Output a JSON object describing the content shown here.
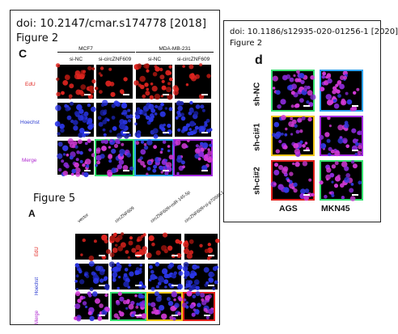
{
  "left_panel": {
    "doi": "doi: 10.2147/cmar.s174778 [2018]",
    "figure2_title": "Figure 2",
    "panel_c": {
      "letter": "C",
      "cell_lines": [
        "MCF7",
        "MDA-MB-231"
      ],
      "conditions": [
        "si-NC",
        "si-circZNF609",
        "si-NC",
        "si-circZNF609"
      ],
      "rows": [
        "EdU",
        "Hoechst",
        "Merge"
      ]
    },
    "figure5_title": "Figure 5",
    "panel_a": {
      "letter": "A",
      "conditions": [
        "vector",
        "circZNF609",
        "circZNF609+miR-145-5p",
        "circZNF609+si-p70S6K1"
      ],
      "rows": [
        "EdU",
        "Hoechst",
        "Merge"
      ]
    }
  },
  "right_panel": {
    "doi": "doi: 10.1186/s12935-020-01256-1 [2020]",
    "figure_title": "Figure 2",
    "panel_d": {
      "letter": "d",
      "rows": [
        "sh-NC",
        "sh-ci#1",
        "sh-ci#2"
      ],
      "columns": [
        "AGS",
        "MKN45"
      ]
    }
  },
  "colors": {
    "green": "#35e06f",
    "blue": "#2ea3f0",
    "purple": "#a32be0",
    "yellow": "#f0c419",
    "red": "#e0201b",
    "edu_label": "#e0201b",
    "hoechst_label": "#2a3ad0"
  }
}
